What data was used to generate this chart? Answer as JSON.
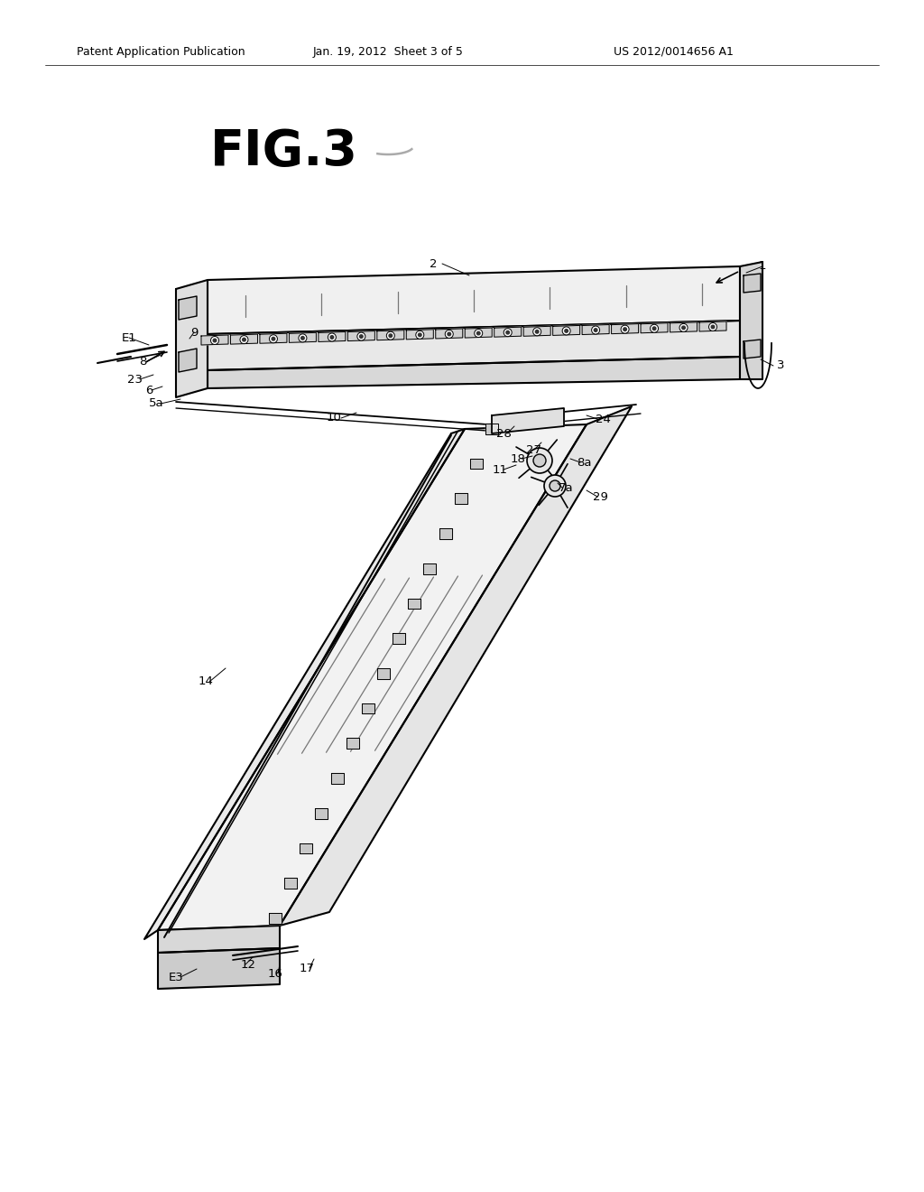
{
  "background_color": "#ffffff",
  "line_color": "#000000",
  "header_left": "Patent Application Publication",
  "header_center": "Jan. 19, 2012  Sheet 3 of 5",
  "header_right": "US 2012/0014656 A1",
  "fig_title": "FIG.3"
}
